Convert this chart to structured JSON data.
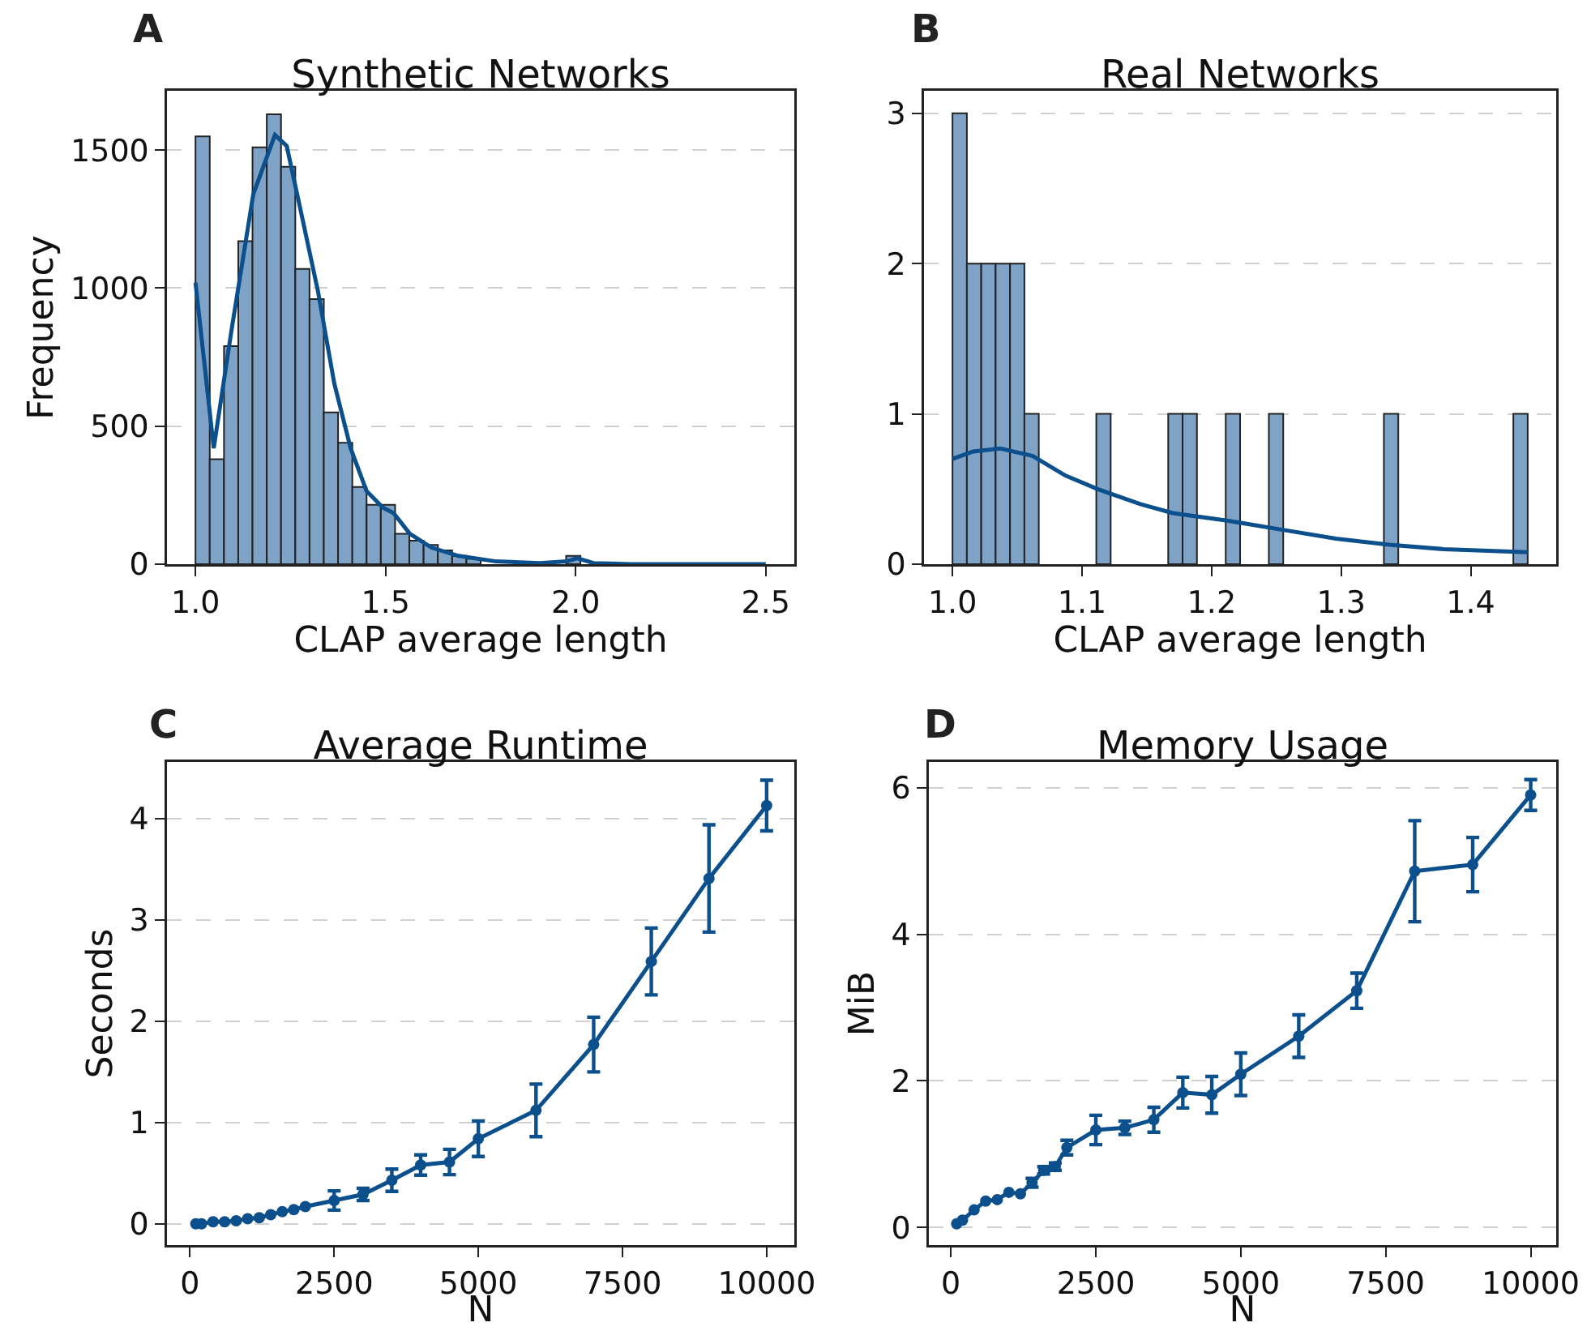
{
  "chart_data": [
    {
      "type": "histogram",
      "title": "Synthetic Networks",
      "xlabel": "CLAP average length",
      "ylabel": "Frequency",
      "annotations": [
        "A"
      ],
      "color": "#7fa3c6",
      "bins": [
        1.0,
        1.0375,
        1.075,
        1.1125,
        1.15,
        1.1875,
        1.225,
        1.2625,
        1.3,
        1.3375,
        1.375,
        1.4125,
        1.45,
        1.4875,
        1.525,
        1.5625,
        1.6,
        1.6375,
        1.675,
        1.7125,
        1.75,
        1.7875,
        1.825,
        1.8625,
        1.9,
        1.9375,
        1.975,
        2.0125,
        2.05,
        2.0875,
        2.125,
        2.1625,
        2.2,
        2.2375,
        2.275,
        2.3125,
        2.35,
        2.3875,
        2.425,
        2.4625,
        2.5
      ],
      "values": [
        1550,
        380,
        790,
        1170,
        1510,
        1630,
        1440,
        1070,
        960,
        550,
        440,
        280,
        215,
        215,
        110,
        85,
        70,
        50,
        30,
        20,
        null,
        null,
        null,
        3,
        2,
        null,
        30,
        0,
        0,
        0,
        0,
        0,
        0,
        0,
        0,
        0,
        0,
        0,
        0,
        0
      ],
      "series": [
        {
          "type": "line",
          "color": "#0b4f8c",
          "x": [
            1.0,
            1.048,
            1.095,
            1.152,
            1.209,
            1.24,
            1.28,
            1.322,
            1.365,
            1.408,
            1.45,
            1.493,
            1.521,
            1.564,
            1.621,
            1.692,
            1.791,
            1.905,
            1.976,
            2.004,
            2.047,
            2.146,
            2.5
          ],
          "values": [
            1020,
            420,
            850,
            1340,
            1555,
            1515,
            1260,
            990,
            655,
            420,
            265,
            205,
            185,
            110,
            60,
            30,
            10,
            4,
            10,
            22,
            4,
            0,
            0
          ]
        }
      ],
      "xlim": [
        0.925,
        2.575
      ],
      "xticks": [
        {
          "value": 1,
          "label": "1.0"
        },
        {
          "value": 1.5,
          "label": "1.5"
        },
        {
          "value": 2,
          "label": "2.0"
        },
        {
          "value": 2.5,
          "label": "2.5"
        }
      ],
      "ylim": [
        0,
        1715
      ],
      "yticks": [
        0,
        500,
        1000,
        1500
      ],
      "grid": "y"
    },
    {
      "type": "histogram",
      "title": "Real Networks",
      "xlabel": "CLAP average length",
      "annotations": [
        "B"
      ],
      "color": "#7fa3c6",
      "bins": [
        1.0,
        1.0111,
        1.0222,
        1.0333,
        1.0444,
        1.0555,
        1.0666,
        1.0777,
        1.0888,
        1.0999,
        1.111,
        1.1221,
        1.1332,
        1.1443,
        1.1554,
        1.1665,
        1.1776,
        1.1887,
        1.1998,
        1.2109,
        1.222,
        1.2331,
        1.2442,
        1.2553,
        1.2664,
        1.2775,
        1.2886,
        1.2997,
        1.3108,
        1.3219,
        1.333,
        1.3441,
        1.3552,
        1.3663,
        1.3774,
        1.3885,
        1.3996,
        1.4107,
        1.4218,
        1.4329,
        1.444
      ],
      "values": [
        3,
        2,
        2,
        2,
        2,
        1,
        0,
        0,
        0,
        0,
        1,
        0,
        0,
        0,
        0,
        1,
        1,
        0,
        0,
        1,
        0,
        0,
        1,
        0,
        0,
        0,
        0,
        0,
        0,
        0,
        1,
        0,
        0,
        0,
        0,
        0,
        0,
        0,
        0,
        1
      ],
      "series": [
        {
          "type": "line",
          "color": "#0b4f8c",
          "x": [
            1.0,
            1.016,
            1.037,
            1.062,
            1.087,
            1.112,
            1.145,
            1.17,
            1.212,
            1.254,
            1.296,
            1.337,
            1.379,
            1.444
          ],
          "values": [
            0.7,
            0.75,
            0.77,
            0.72,
            0.59,
            0.5,
            0.4,
            0.34,
            0.29,
            0.23,
            0.17,
            0.13,
            0.1,
            0.08
          ]
        }
      ],
      "xlim": [
        0.978,
        1.466
      ],
      "xticks": [
        {
          "value": 1,
          "label": "1.0"
        },
        1.1,
        1.2,
        1.3,
        1.4
      ],
      "ylim": [
        0,
        3.15
      ],
      "yticks": [
        0,
        1,
        2,
        3
      ],
      "grid": "y"
    },
    {
      "type": "line",
      "title": "Average Runtime",
      "xlabel": "N",
      "ylabel": "Seconds",
      "annotations": [
        "C"
      ],
      "marker": "circle",
      "x": [
        100,
        200,
        400,
        600,
        800,
        1000,
        1200,
        1400,
        1600,
        1800,
        2000,
        2500,
        3000,
        3500,
        4000,
        4500,
        5000,
        6000,
        7000,
        8000,
        9000,
        10000
      ],
      "series": [
        {
          "color": "#0b4f8c",
          "values": [
            0.0,
            0.0,
            0.02,
            0.02,
            0.03,
            0.05,
            0.06,
            0.09,
            0.12,
            0.14,
            0.17,
            0.23,
            0.29,
            0.43,
            0.58,
            0.61,
            0.84,
            1.12,
            1.77,
            2.59,
            3.41,
            4.13
          ],
          "errors": [
            null,
            null,
            null,
            null,
            null,
            null,
            null,
            null,
            null,
            null,
            null,
            0.095,
            0.06,
            0.11,
            0.1,
            0.125,
            0.175,
            0.26,
            0.27,
            0.33,
            0.53,
            0.25
          ]
        }
      ],
      "xlim": [
        -400,
        10480
      ],
      "xticks": [
        0,
        2500,
        5000,
        7500,
        10000
      ],
      "ylim": [
        -0.21,
        4.56
      ],
      "yticks": [
        0,
        1,
        2,
        3,
        4
      ],
      "grid": "y"
    },
    {
      "type": "line",
      "title": "Memory Usage",
      "xlabel": "N",
      "ylabel": "MiB",
      "annotations": [
        "D"
      ],
      "marker": "circle",
      "x": [
        100,
        200,
        400,
        600,
        800,
        1000,
        1200,
        1400,
        1600,
        1800,
        2000,
        2500,
        3000,
        3500,
        4000,
        4500,
        5000,
        6000,
        7000,
        8000,
        9000,
        10000
      ],
      "series": [
        {
          "color": "#0b4f8c",
          "values": [
            0.05,
            0.1,
            0.24,
            0.36,
            0.38,
            0.48,
            0.46,
            0.61,
            0.78,
            0.83,
            1.09,
            1.33,
            1.36,
            1.47,
            1.84,
            1.81,
            2.09,
            2.61,
            3.23,
            4.86,
            4.95,
            5.9
          ],
          "errors": [
            null,
            null,
            null,
            null,
            null,
            null,
            null,
            0.06,
            0.05,
            0.05,
            0.1,
            0.2,
            0.09,
            0.17,
            0.21,
            0.25,
            0.29,
            0.29,
            0.24,
            0.69,
            0.37,
            0.21
          ]
        }
      ],
      "xlim": [
        -380,
        10440
      ],
      "xticks": [
        0,
        2500,
        5000,
        7500,
        10000
      ],
      "ylim": [
        -0.24,
        6.35
      ],
      "yticks": [
        0,
        2,
        4,
        6
      ],
      "grid": "y"
    }
  ]
}
